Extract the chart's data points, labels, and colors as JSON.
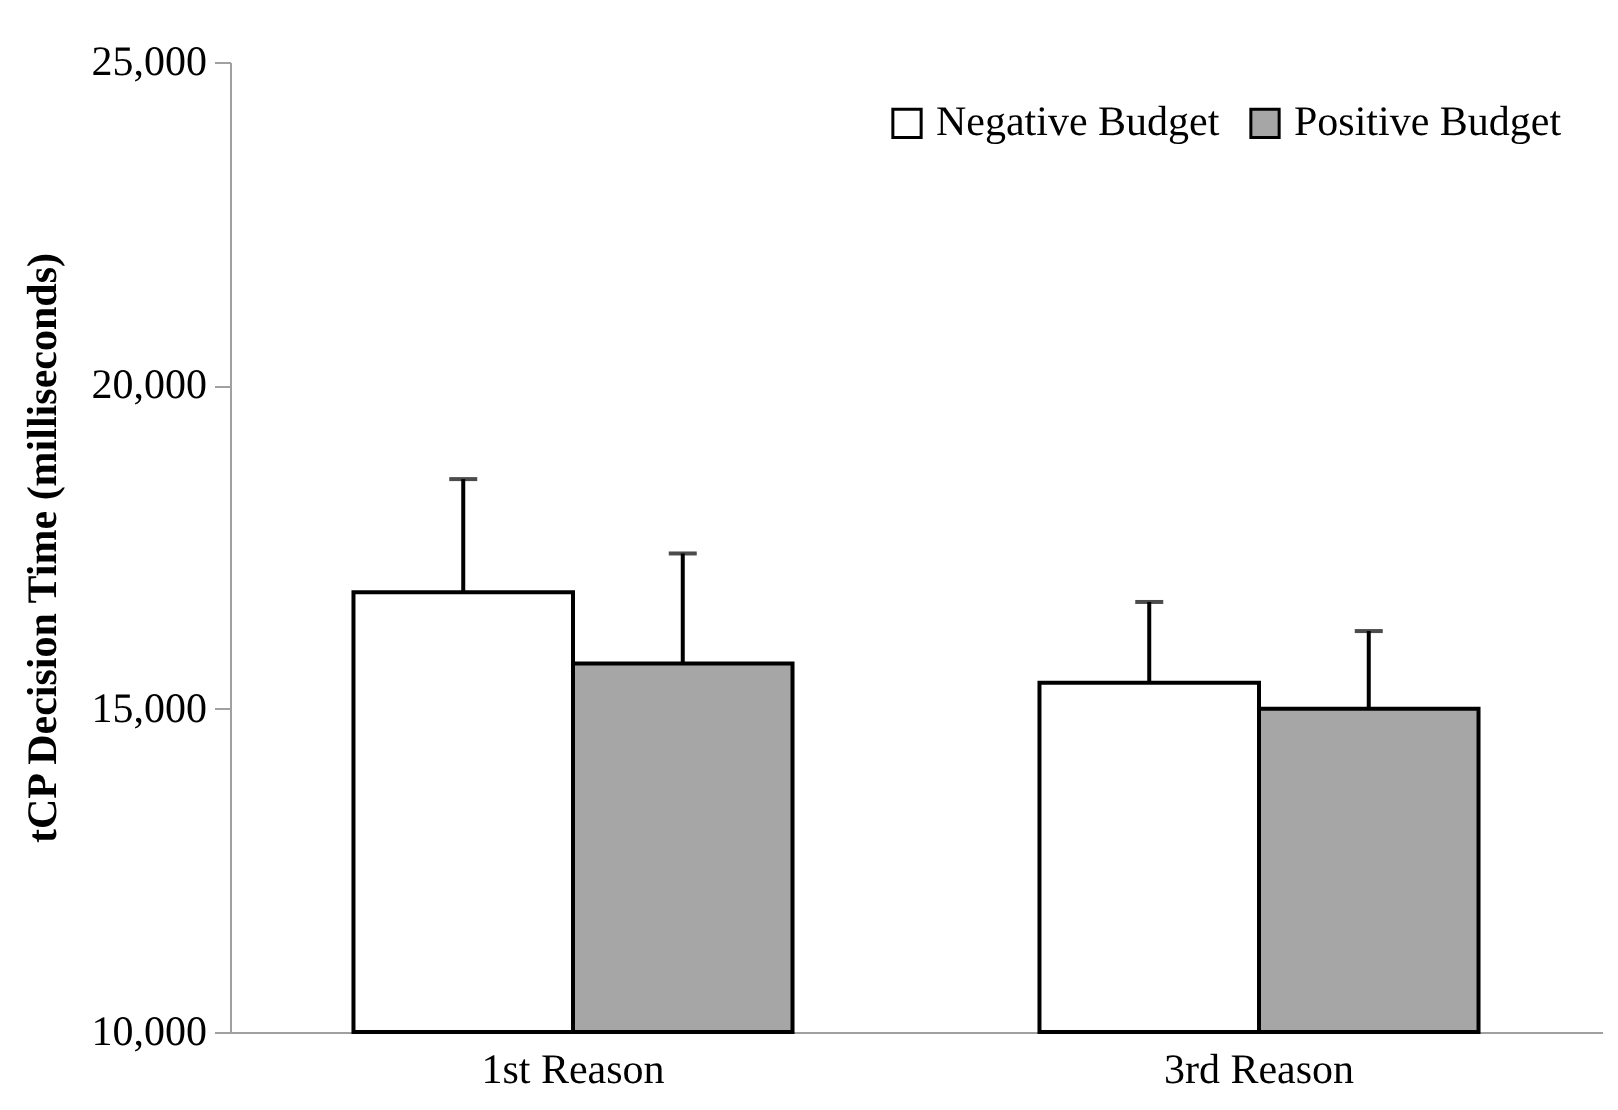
{
  "chart_data": {
    "type": "bar",
    "ylabel": "tCP Decision Time  (milliseconds)",
    "categories": [
      "1st Reason",
      "3rd Reason"
    ],
    "series": [
      {
        "name": "Negative Budget",
        "color": "#ffffff",
        "values": [
          16800,
          15400
        ],
        "errors": [
          [
            16800,
            18550
          ],
          [
            15400,
            16650
          ]
        ]
      },
      {
        "name": "Positive Budget",
        "color": "#a6a6a6",
        "values": [
          15700,
          15000
        ],
        "errors": [
          [
            15700,
            17400
          ],
          [
            15000,
            16200
          ]
        ]
      }
    ],
    "ylim": [
      10000,
      25000
    ],
    "yticks": [
      {
        "value": 10000,
        "label": "10,000"
      },
      {
        "value": 15000,
        "label": "15,000"
      },
      {
        "value": 20000,
        "label": "20,000"
      },
      {
        "value": 25000,
        "label": "25,000"
      }
    ],
    "grid": false,
    "legend": "top right"
  }
}
